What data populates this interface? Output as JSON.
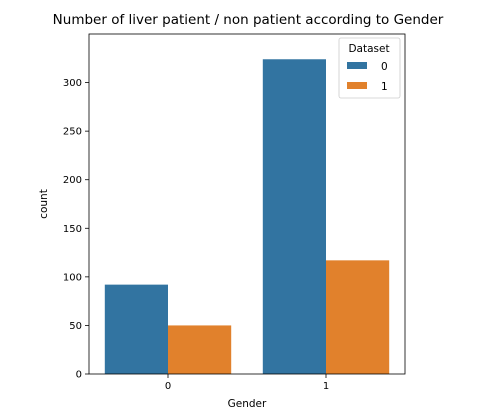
{
  "colors": {
    "series_0": "#3274a1",
    "series_1": "#e1812c",
    "axis": "#000000",
    "legend_border": "#cccccc"
  },
  "chart_data": {
    "type": "bar",
    "title": "Number of liver patient / non patient according to Gender",
    "xlabel": "Gender",
    "ylabel": "count",
    "categories": [
      "0",
      "1"
    ],
    "series": [
      {
        "name": "0",
        "values": [
          92,
          324
        ]
      },
      {
        "name": "1",
        "values": [
          50,
          117
        ]
      }
    ],
    "ylim": [
      0,
      350
    ],
    "yticks": [
      0,
      50,
      100,
      150,
      200,
      250,
      300
    ],
    "grid": false,
    "legend": {
      "title": "Dataset",
      "placement": "top-right"
    }
  }
}
